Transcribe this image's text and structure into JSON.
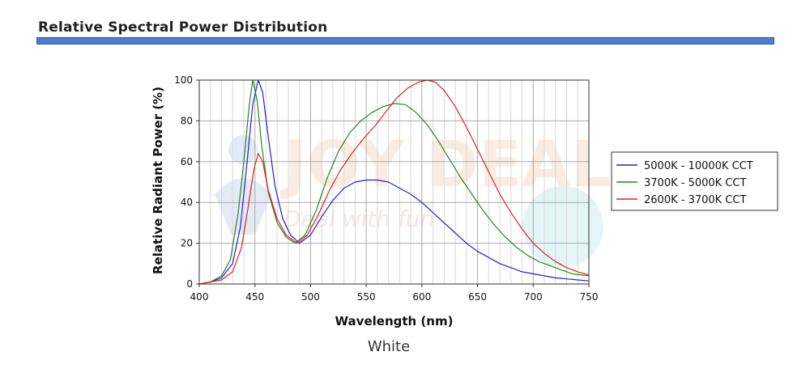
{
  "header": {
    "title": "Relative Spectral Power Distribution",
    "bar_color": "#4a7fcf"
  },
  "caption": "White",
  "watermark": {
    "brand": "JOY DEAL",
    "tagline": "Deal with fun"
  },
  "chart_data": {
    "type": "line",
    "title": "",
    "xlabel": "Wavelength (nm)",
    "ylabel": "Relative Radiant Power (%)",
    "xlim": [
      400,
      750
    ],
    "ylim": [
      0,
      100
    ],
    "x_ticks": [
      400,
      450,
      500,
      550,
      600,
      650,
      700,
      750
    ],
    "y_ticks": [
      0,
      20,
      40,
      60,
      80,
      100
    ],
    "grid": true,
    "legend_position": "right",
    "series": [
      {
        "name": "5000K - 10000K CCT",
        "color": "#2222cc",
        "points": [
          [
            400,
            0
          ],
          [
            410,
            1
          ],
          [
            420,
            3
          ],
          [
            430,
            10
          ],
          [
            437,
            28
          ],
          [
            443,
            60
          ],
          [
            448,
            88
          ],
          [
            453,
            100
          ],
          [
            457,
            94
          ],
          [
            462,
            72
          ],
          [
            468,
            48
          ],
          [
            475,
            32
          ],
          [
            482,
            24
          ],
          [
            490,
            20
          ],
          [
            500,
            24
          ],
          [
            510,
            33
          ],
          [
            520,
            41
          ],
          [
            530,
            47
          ],
          [
            540,
            50
          ],
          [
            550,
            51
          ],
          [
            560,
            51
          ],
          [
            570,
            50
          ],
          [
            580,
            47
          ],
          [
            590,
            44
          ],
          [
            600,
            40
          ],
          [
            610,
            35
          ],
          [
            620,
            30
          ],
          [
            630,
            25
          ],
          [
            640,
            20
          ],
          [
            650,
            16
          ],
          [
            660,
            13
          ],
          [
            670,
            10
          ],
          [
            680,
            8
          ],
          [
            690,
            6
          ],
          [
            700,
            5
          ],
          [
            710,
            4
          ],
          [
            720,
            3
          ],
          [
            730,
            2.5
          ],
          [
            740,
            2
          ],
          [
            750,
            1.5
          ]
        ]
      },
      {
        "name": "3700K - 5000K CCT",
        "color": "#228822",
        "points": [
          [
            400,
            0
          ],
          [
            410,
            1
          ],
          [
            420,
            4
          ],
          [
            428,
            12
          ],
          [
            435,
            35
          ],
          [
            440,
            60
          ],
          [
            445,
            88
          ],
          [
            448,
            100
          ],
          [
            452,
            90
          ],
          [
            456,
            68
          ],
          [
            462,
            45
          ],
          [
            470,
            30
          ],
          [
            478,
            23
          ],
          [
            486,
            20
          ],
          [
            495,
            24
          ],
          [
            505,
            36
          ],
          [
            515,
            52
          ],
          [
            525,
            65
          ],
          [
            535,
            74
          ],
          [
            545,
            80
          ],
          [
            555,
            84
          ],
          [
            565,
            87
          ],
          [
            575,
            88.5
          ],
          [
            585,
            88
          ],
          [
            595,
            84
          ],
          [
            605,
            78
          ],
          [
            615,
            70
          ],
          [
            625,
            61
          ],
          [
            635,
            52
          ],
          [
            645,
            44
          ],
          [
            655,
            36
          ],
          [
            665,
            29
          ],
          [
            675,
            23
          ],
          [
            685,
            18
          ],
          [
            695,
            14
          ],
          [
            705,
            11
          ],
          [
            715,
            9
          ],
          [
            725,
            7
          ],
          [
            735,
            5
          ],
          [
            750,
            4
          ]
        ]
      },
      {
        "name": "2600K - 3700K CCT",
        "color": "#dd2222",
        "points": [
          [
            400,
            0
          ],
          [
            410,
            1
          ],
          [
            420,
            2
          ],
          [
            430,
            6
          ],
          [
            438,
            18
          ],
          [
            444,
            38
          ],
          [
            449,
            56
          ],
          [
            453,
            64
          ],
          [
            457,
            60
          ],
          [
            462,
            46
          ],
          [
            470,
            32
          ],
          [
            478,
            24
          ],
          [
            488,
            20
          ],
          [
            497,
            24
          ],
          [
            507,
            34
          ],
          [
            517,
            46
          ],
          [
            527,
            56
          ],
          [
            537,
            64
          ],
          [
            547,
            71
          ],
          [
            557,
            77
          ],
          [
            567,
            84
          ],
          [
            577,
            91
          ],
          [
            587,
            96
          ],
          [
            597,
            99
          ],
          [
            605,
            100
          ],
          [
            612,
            99
          ],
          [
            620,
            95
          ],
          [
            630,
            87
          ],
          [
            640,
            77
          ],
          [
            650,
            66
          ],
          [
            660,
            55
          ],
          [
            670,
            44
          ],
          [
            680,
            35
          ],
          [
            690,
            27
          ],
          [
            700,
            20
          ],
          [
            710,
            15
          ],
          [
            720,
            11
          ],
          [
            730,
            8
          ],
          [
            740,
            6
          ],
          [
            750,
            4.5
          ]
        ]
      }
    ]
  }
}
